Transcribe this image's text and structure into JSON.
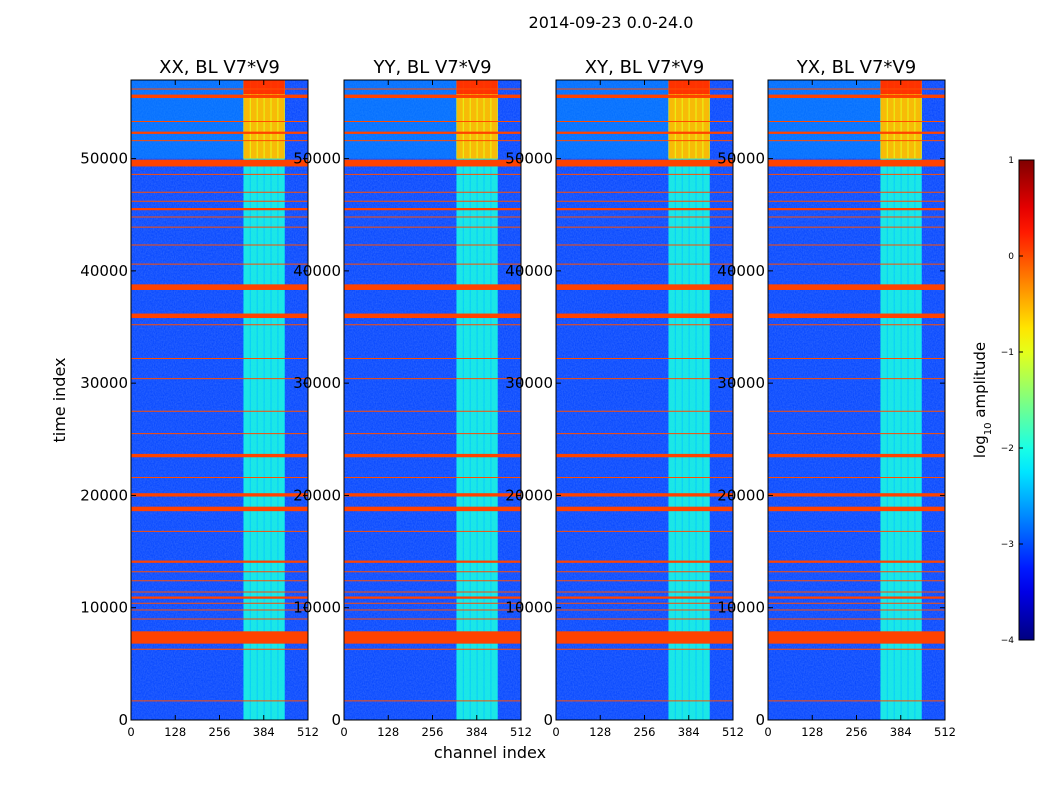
{
  "chart_data": {
    "type": "heatmap",
    "title": "2014-09-23 0.0-24.0",
    "xlabel": "channel index",
    "ylabel": "time index",
    "xlim": [
      0,
      512
    ],
    "ylim": [
      0,
      57000
    ],
    "x_ticks": [
      0,
      128,
      256,
      384,
      512
    ],
    "y_ticks": [
      0,
      10000,
      20000,
      30000,
      40000,
      50000
    ],
    "panels": [
      {
        "name": "xx",
        "title": "XX, BL V7*V9"
      },
      {
        "name": "yy",
        "title": "YY, BL V7*V9"
      },
      {
        "name": "xy",
        "title": "XY, BL V7*V9"
      },
      {
        "name": "yx",
        "title": "YX, BL V7*V9"
      }
    ],
    "colorbar": {
      "label_main": "log",
      "label_sub": "10",
      "label_tail": " amplitude",
      "range": [
        -4,
        1
      ],
      "ticks": [
        1,
        0,
        -1,
        -2,
        -3,
        -4
      ],
      "tick_labels": [
        "1",
        "0",
        "−1",
        "−2",
        "−3",
        "−4"
      ]
    },
    "bright_channel_band": [
      325,
      445
    ],
    "bright_time_band": [
      50000,
      57000
    ],
    "flagged_time_bands": [
      [
        6800,
        7900
      ],
      [
        49300,
        49900
      ],
      [
        38300,
        38800
      ],
      [
        35800,
        36200
      ],
      [
        18600,
        19000
      ],
      [
        19900,
        20200
      ],
      [
        23400,
        23700
      ],
      [
        55400,
        55700
      ],
      [
        10800,
        11000
      ],
      [
        14000,
        14200
      ],
      [
        45400,
        45600
      ],
      [
        52200,
        52400
      ]
    ],
    "flagged_time_lines": [
      1700,
      6300,
      9000,
      9800,
      10400,
      11400,
      12400,
      13200,
      16800,
      21600,
      25500,
      27500,
      30400,
      32200,
      35200,
      40600,
      42300,
      43900,
      44800,
      46200,
      47000,
      48600,
      51600,
      53300,
      56200
    ]
  }
}
